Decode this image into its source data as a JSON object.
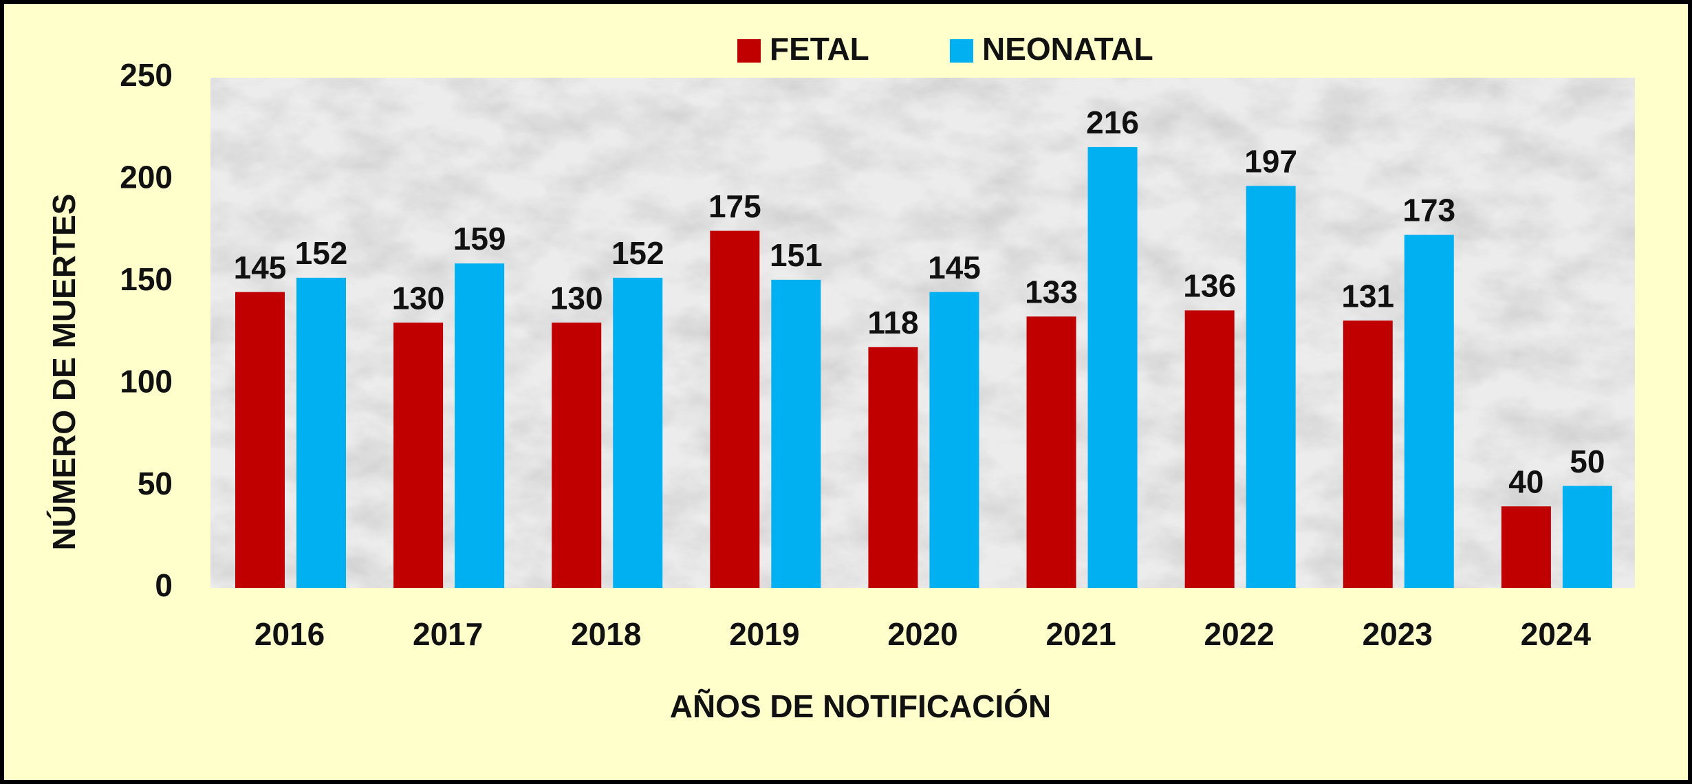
{
  "chart_data": {
    "type": "bar",
    "categories": [
      "2016",
      "2017",
      "2018",
      "2019",
      "2020",
      "2021",
      "2022",
      "2023",
      "2024"
    ],
    "series": [
      {
        "name": "FETAL",
        "color": "#c00000",
        "values": [
          145,
          130,
          130,
          175,
          118,
          133,
          136,
          131,
          40
        ]
      },
      {
        "name": "NEONATAL",
        "color": "#00b0f0",
        "values": [
          152,
          159,
          152,
          151,
          145,
          216,
          197,
          173,
          50
        ]
      }
    ],
    "x_label": "AÑOS DE NOTIFICACIÓN",
    "y_label": "NÚMERO DE MUERTES",
    "ylim": [
      0,
      250
    ],
    "yticks": [
      0,
      50,
      100,
      150,
      200,
      250
    ],
    "legend": "top"
  }
}
